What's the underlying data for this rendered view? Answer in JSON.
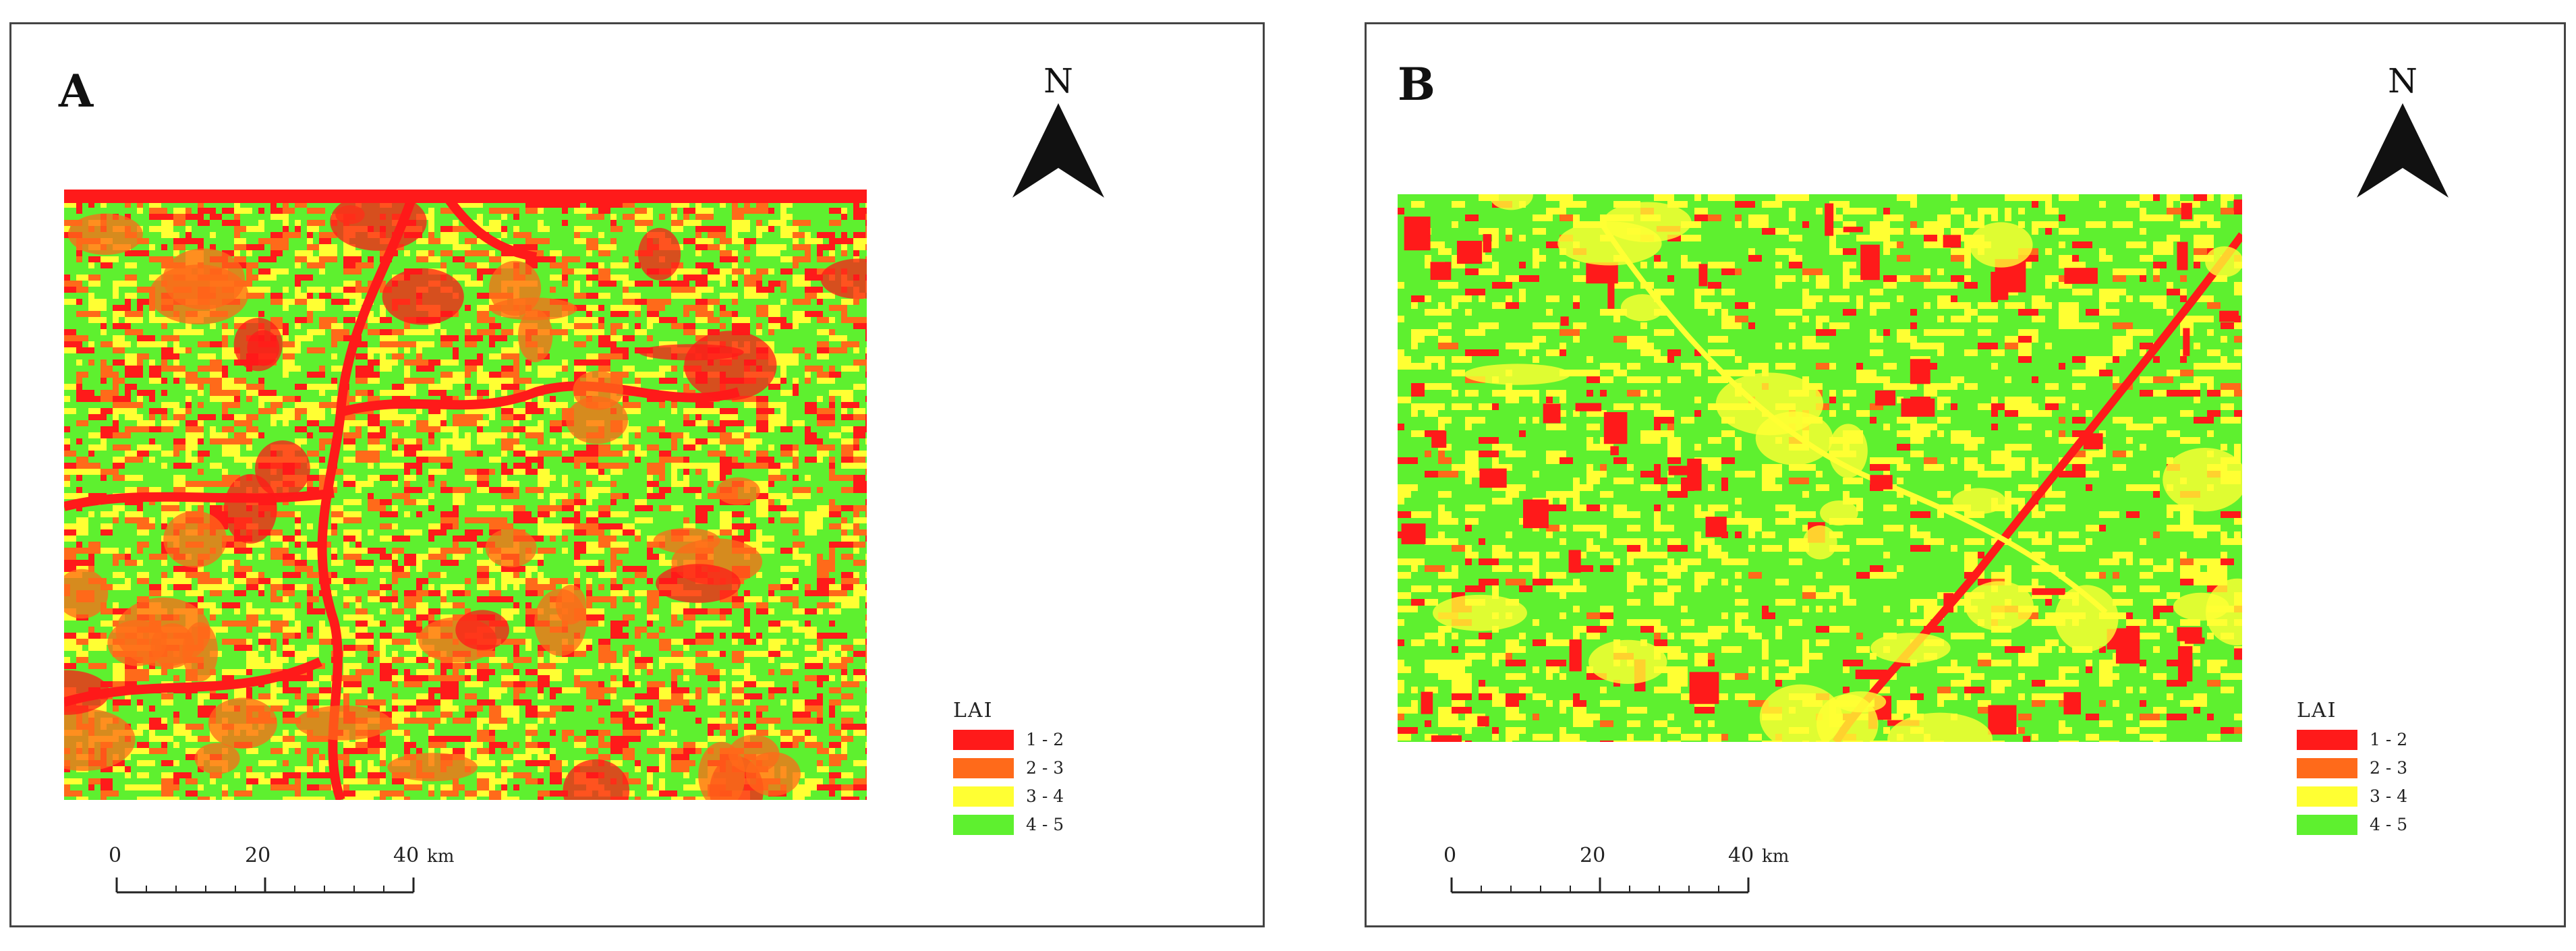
{
  "panels": [
    {
      "letter": "A",
      "north": "N",
      "legend": {
        "title": "LAI",
        "items": [
          {
            "label": "1 - 2",
            "color": "#ff1a1a"
          },
          {
            "label": "2 - 3",
            "color": "#ff6a1a"
          },
          {
            "label": "3 - 4",
            "color": "#ffff33"
          },
          {
            "label": "4 - 5",
            "color": "#5ef02f"
          }
        ]
      },
      "scalebar": {
        "ticks": [
          "0",
          "20",
          "40"
        ],
        "unit": "km"
      },
      "raster": {
        "dominant": "green with heavy red/orange river and hill areas"
      }
    },
    {
      "letter": "B",
      "north": "N",
      "legend": {
        "title": "LAI",
        "items": [
          {
            "label": "1 - 2",
            "color": "#ff1a1a"
          },
          {
            "label": "2 - 3",
            "color": "#ff6a1a"
          },
          {
            "label": "3 - 4",
            "color": "#ffff33"
          },
          {
            "label": "4 - 5",
            "color": "#5ef02f"
          }
        ]
      },
      "scalebar": {
        "ticks": [
          "0",
          "20",
          "40"
        ],
        "unit": "km"
      },
      "raster": {
        "dominant": "mostly green with yellow patches and red field blocks"
      }
    }
  ]
}
